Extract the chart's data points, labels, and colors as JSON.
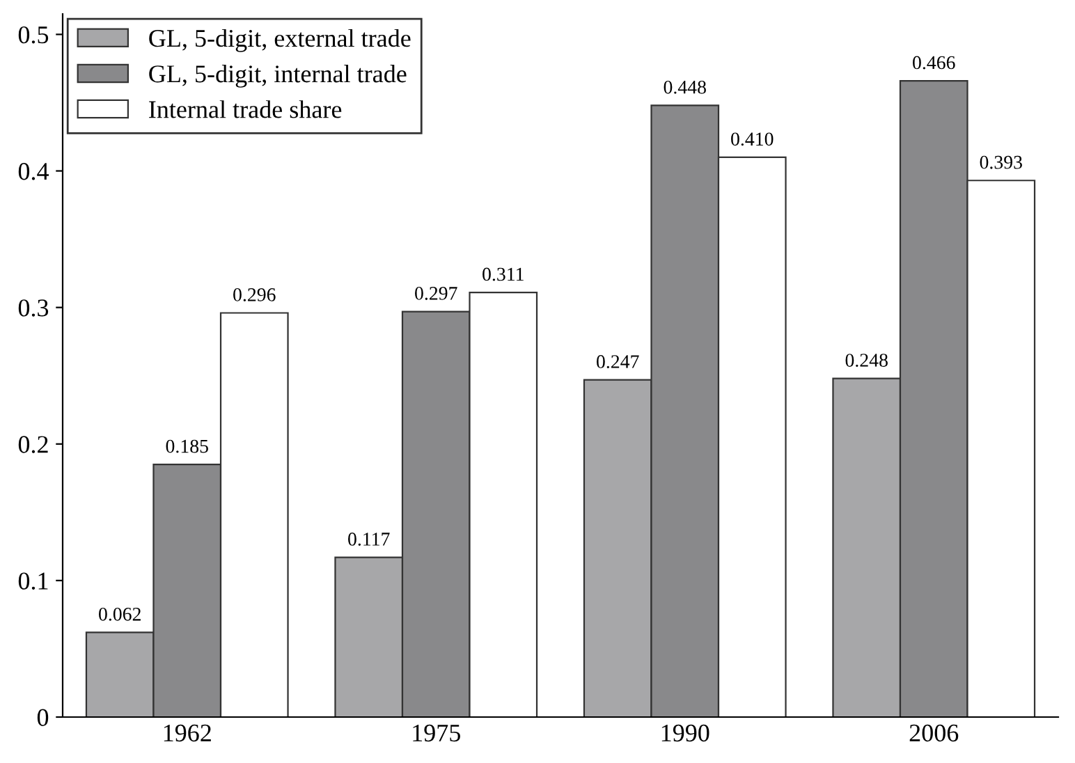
{
  "chart_data": {
    "type": "bar",
    "categories": [
      "1962",
      "1975",
      "1990",
      "2006"
    ],
    "series": [
      {
        "name": "GL, 5-digit, external trade",
        "color": "#a7a7a9",
        "values": [
          0.062,
          0.117,
          0.247,
          0.248
        ],
        "value_labels": [
          "0.062",
          "0.117",
          "0.247",
          "0.248"
        ]
      },
      {
        "name": "GL, 5-digit, internal trade",
        "color": "#89898b",
        "values": [
          0.185,
          0.297,
          0.448,
          0.466
        ],
        "value_labels": [
          "0.185",
          "0.297",
          "0.448",
          "0.466"
        ]
      },
      {
        "name": "Internal trade share",
        "color": "#ffffff",
        "values": [
          0.296,
          0.311,
          0.41,
          0.393
        ],
        "value_labels": [
          "0.296",
          "0.311",
          "0.410",
          "0.393"
        ]
      }
    ],
    "ylim": [
      0,
      0.515
    ],
    "yticks": [
      {
        "value": 0,
        "label": "0"
      },
      0.1,
      0.2,
      0.3,
      0.4,
      0.5
    ],
    "grid": false,
    "legend": "top left"
  }
}
